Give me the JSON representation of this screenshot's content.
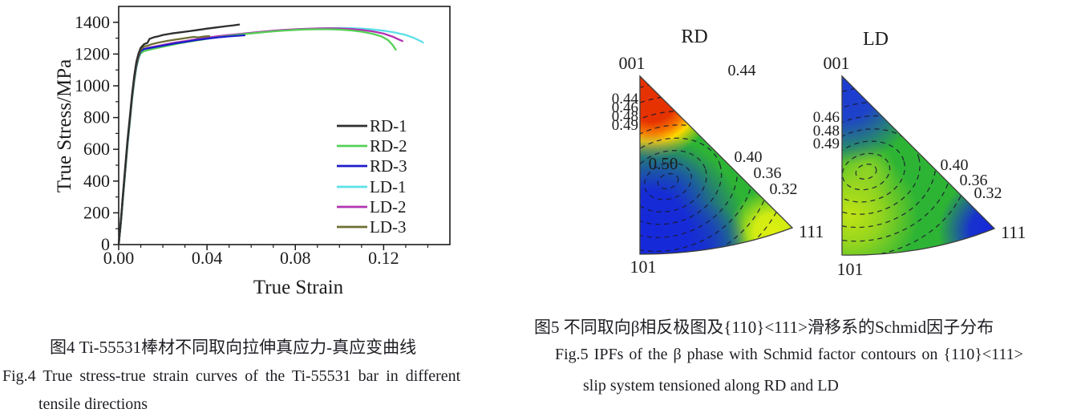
{
  "captions": {
    "fig4_cn": "图4 Ti-55531棒材不同取向拉伸真应力-真应变曲线",
    "fig4_en1": "Fig.4  True stress-true strain curves of the Ti-55531 bar in different",
    "fig4_en2": "tensile directions",
    "fig5_cn": "图5 不同取向β相反极图及{110}<111>滑移系的Schmid因子分布",
    "fig5_en1": "Fig.5  IPFs of the β phase with Schmid factor contours on {110}<111>",
    "fig5_en2": "slip system tensioned along RD and LD"
  },
  "chart_data": [
    {
      "type": "line",
      "title": "",
      "xlabel": "True Strain",
      "ylabel": "True Stress/MPa",
      "xlim": [
        0,
        0.15
      ],
      "ylim": [
        0,
        1500
      ],
      "xticks": [
        0,
        0.04,
        0.08,
        0.12
      ],
      "xtick_labels": [
        "0.00",
        "0.04",
        "0.08",
        "0.12"
      ],
      "x_minor_step": 0.01,
      "yticks": [
        0,
        200,
        400,
        600,
        800,
        1000,
        1200,
        1400
      ],
      "ytick_labels": [
        "0",
        "200",
        "400",
        "600",
        "800",
        "1000",
        "1200",
        "1400"
      ],
      "y_minor_step": 100,
      "grid": false,
      "legend_position": "inside-right-middle",
      "series": [
        {
          "name": "RD-1",
          "color": "#2e2e2e",
          "points": [
            [
              0,
              0
            ],
            [
              0.001,
              160
            ],
            [
              0.002,
              330
            ],
            [
              0.003,
              500
            ],
            [
              0.004,
              660
            ],
            [
              0.005,
              800
            ],
            [
              0.006,
              940
            ],
            [
              0.007,
              1060
            ],
            [
              0.008,
              1150
            ],
            [
              0.009,
              1205
            ],
            [
              0.01,
              1240
            ],
            [
              0.0115,
              1262
            ],
            [
              0.013,
              1270
            ],
            [
              0.014,
              1296
            ],
            [
              0.016,
              1306
            ],
            [
              0.018,
              1312
            ],
            [
              0.02,
              1320
            ],
            [
              0.024,
              1330
            ],
            [
              0.028,
              1337
            ],
            [
              0.032,
              1344
            ],
            [
              0.036,
              1352
            ],
            [
              0.04,
              1360
            ],
            [
              0.044,
              1367
            ],
            [
              0.048,
              1374
            ],
            [
              0.052,
              1381
            ],
            [
              0.0545,
              1386
            ]
          ]
        },
        {
          "name": "RD-2",
          "color": "#55d055",
          "points": [
            [
              0,
              0
            ],
            [
              0.001,
              140
            ],
            [
              0.002,
              300
            ],
            [
              0.003,
              465
            ],
            [
              0.004,
              625
            ],
            [
              0.005,
              765
            ],
            [
              0.006,
              905
            ],
            [
              0.007,
              1025
            ],
            [
              0.008,
              1115
            ],
            [
              0.009,
              1175
            ],
            [
              0.01,
              1205
            ],
            [
              0.0115,
              1218
            ],
            [
              0.014,
              1228
            ],
            [
              0.018,
              1240
            ],
            [
              0.022,
              1252
            ],
            [
              0.026,
              1263
            ],
            [
              0.03,
              1273
            ],
            [
              0.035,
              1285
            ],
            [
              0.04,
              1296
            ],
            [
              0.045,
              1306
            ],
            [
              0.05,
              1315
            ],
            [
              0.055,
              1323
            ],
            [
              0.06,
              1330
            ],
            [
              0.065,
              1337
            ],
            [
              0.07,
              1343
            ],
            [
              0.075,
              1348
            ],
            [
              0.08,
              1352
            ],
            [
              0.085,
              1355
            ],
            [
              0.09,
              1356
            ],
            [
              0.095,
              1356
            ],
            [
              0.1,
              1354
            ],
            [
              0.105,
              1349
            ],
            [
              0.11,
              1341
            ],
            [
              0.115,
              1328
            ],
            [
              0.119,
              1311
            ],
            [
              0.122,
              1288
            ],
            [
              0.124,
              1258
            ],
            [
              0.1255,
              1228
            ]
          ]
        },
        {
          "name": "RD-3",
          "color": "#1c1ccc",
          "points": [
            [
              0,
              0
            ],
            [
              0.001,
              145
            ],
            [
              0.002,
              310
            ],
            [
              0.003,
              475
            ],
            [
              0.004,
              635
            ],
            [
              0.005,
              775
            ],
            [
              0.006,
              915
            ],
            [
              0.007,
              1035
            ],
            [
              0.008,
              1125
            ],
            [
              0.009,
              1183
            ],
            [
              0.01,
              1218
            ],
            [
              0.0115,
              1232
            ],
            [
              0.014,
              1238
            ],
            [
              0.018,
              1248
            ],
            [
              0.022,
              1258
            ],
            [
              0.026,
              1268
            ],
            [
              0.03,
              1277
            ],
            [
              0.035,
              1288
            ],
            [
              0.04,
              1297
            ],
            [
              0.045,
              1305
            ],
            [
              0.05,
              1311
            ],
            [
              0.055,
              1316
            ],
            [
              0.057,
              1318
            ]
          ]
        },
        {
          "name": "LD-1",
          "color": "#5be0e8",
          "points": [
            [
              0,
              0
            ],
            [
              0.001,
              143
            ],
            [
              0.002,
              305
            ],
            [
              0.003,
              470
            ],
            [
              0.004,
              630
            ],
            [
              0.005,
              770
            ],
            [
              0.006,
              910
            ],
            [
              0.007,
              1030
            ],
            [
              0.008,
              1120
            ],
            [
              0.009,
              1180
            ],
            [
              0.01,
              1213
            ],
            [
              0.0115,
              1226
            ],
            [
              0.014,
              1235
            ],
            [
              0.018,
              1246
            ],
            [
              0.022,
              1257
            ],
            [
              0.026,
              1267
            ],
            [
              0.03,
              1276
            ],
            [
              0.035,
              1287
            ],
            [
              0.04,
              1297
            ],
            [
              0.045,
              1307
            ],
            [
              0.05,
              1316
            ],
            [
              0.055,
              1324
            ],
            [
              0.06,
              1332
            ],
            [
              0.065,
              1339
            ],
            [
              0.07,
              1345
            ],
            [
              0.075,
              1350
            ],
            [
              0.08,
              1355
            ],
            [
              0.085,
              1358
            ],
            [
              0.09,
              1361
            ],
            [
              0.095,
              1363
            ],
            [
              0.1,
              1364
            ],
            [
              0.105,
              1363
            ],
            [
              0.11,
              1360
            ],
            [
              0.115,
              1355
            ],
            [
              0.12,
              1347
            ],
            [
              0.125,
              1336
            ],
            [
              0.13,
              1320
            ],
            [
              0.134,
              1300
            ],
            [
              0.137,
              1280
            ],
            [
              0.1378,
              1272
            ]
          ]
        },
        {
          "name": "LD-2",
          "color": "#b233b2",
          "points": [
            [
              0,
              0
            ],
            [
              0.001,
              148
            ],
            [
              0.002,
              312
            ],
            [
              0.003,
              478
            ],
            [
              0.004,
              638
            ],
            [
              0.005,
              778
            ],
            [
              0.006,
              918
            ],
            [
              0.007,
              1038
            ],
            [
              0.008,
              1128
            ],
            [
              0.009,
              1186
            ],
            [
              0.01,
              1220
            ],
            [
              0.0115,
              1233
            ],
            [
              0.014,
              1241
            ],
            [
              0.018,
              1252
            ],
            [
              0.022,
              1263
            ],
            [
              0.026,
              1273
            ],
            [
              0.03,
              1282
            ],
            [
              0.035,
              1293
            ],
            [
              0.04,
              1303
            ],
            [
              0.045,
              1312
            ],
            [
              0.05,
              1320
            ],
            [
              0.055,
              1327
            ],
            [
              0.06,
              1334
            ],
            [
              0.065,
              1341
            ],
            [
              0.07,
              1347
            ],
            [
              0.075,
              1352
            ],
            [
              0.08,
              1356
            ],
            [
              0.085,
              1359
            ],
            [
              0.09,
              1361
            ],
            [
              0.095,
              1362
            ],
            [
              0.1,
              1361
            ],
            [
              0.105,
              1358
            ],
            [
              0.11,
              1352
            ],
            [
              0.115,
              1343
            ],
            [
              0.12,
              1329
            ],
            [
              0.124,
              1310
            ],
            [
              0.127,
              1291
            ],
            [
              0.1285,
              1282
            ]
          ]
        },
        {
          "name": "LD-3",
          "color": "#6e6e34",
          "points": [
            [
              0,
              0
            ],
            [
              0.001,
              150
            ],
            [
              0.002,
              315
            ],
            [
              0.003,
              485
            ],
            [
              0.004,
              645
            ],
            [
              0.005,
              785
            ],
            [
              0.006,
              925
            ],
            [
              0.007,
              1045
            ],
            [
              0.008,
              1135
            ],
            [
              0.009,
              1192
            ],
            [
              0.01,
              1228
            ],
            [
              0.0115,
              1248
            ],
            [
              0.013,
              1252
            ],
            [
              0.015,
              1262
            ],
            [
              0.018,
              1272
            ],
            [
              0.022,
              1283
            ],
            [
              0.026,
              1292
            ],
            [
              0.03,
              1300
            ],
            [
              0.034,
              1308
            ],
            [
              0.036,
              1305
            ],
            [
              0.039,
              1311
            ],
            [
              0.041,
              1313
            ]
          ]
        }
      ]
    },
    {
      "type": "heatmap",
      "name": "IPF-RD",
      "title": "RD",
      "corners": [
        "001",
        "101",
        "111"
      ],
      "top_label": "0.44",
      "left_contour_labels": [
        "0.44",
        "0.46",
        "0.48",
        "0.49"
      ],
      "inner_label": "0.50",
      "right_contour_labels": [
        "0.40",
        "0.36",
        "0.32"
      ],
      "colormap_description": "red near 001, yellow band, green middle, blue near 101 and bottom, yellow-green near 111"
    },
    {
      "type": "heatmap",
      "name": "IPF-LD",
      "title": "LD",
      "corners": [
        "001",
        "101",
        "111"
      ],
      "left_contour_labels": [
        "0.46",
        "0.48",
        "0.49"
      ],
      "right_contour_labels": [
        "0.40",
        "0.36",
        "0.32"
      ],
      "colormap_description": "blue near 001 and near 111, green middle, yellow-green along lower 001-101 edge"
    }
  ]
}
